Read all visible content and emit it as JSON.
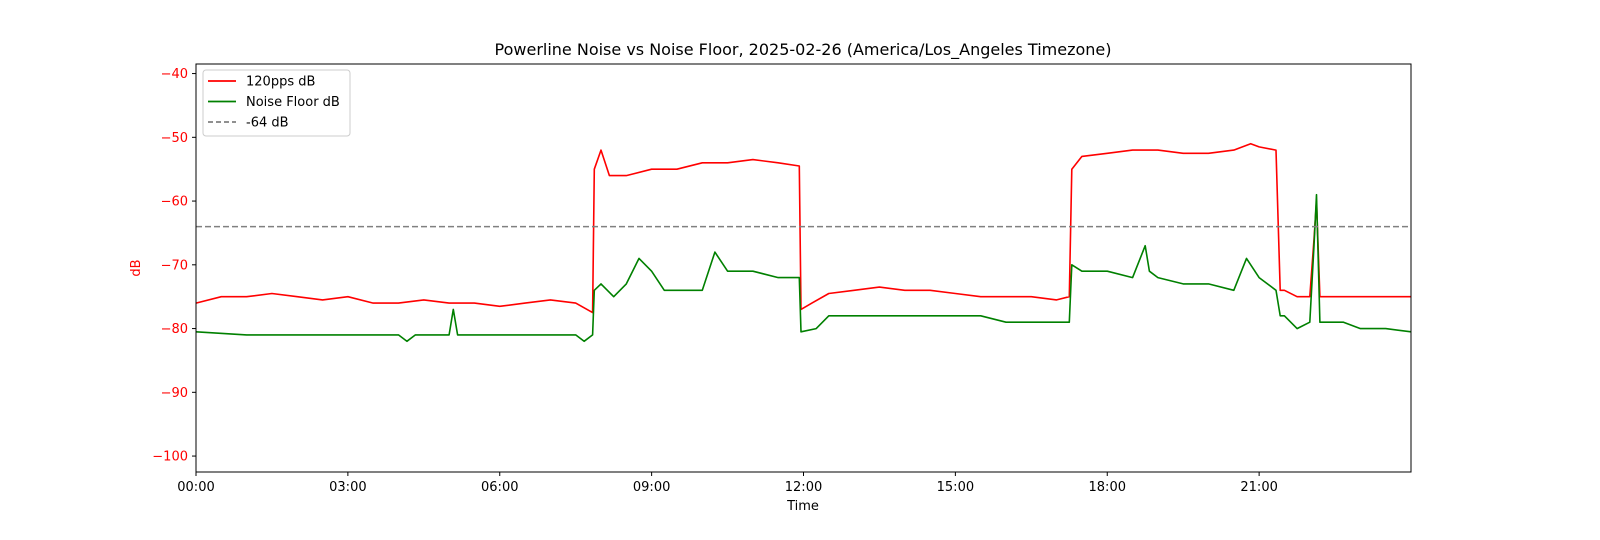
{
  "chart_data": {
    "type": "line",
    "title": "Powerline Noise vs Noise Floor, 2025-02-26 (America/Los_Angeles Timezone)",
    "xlabel": "Time",
    "ylabel": "dB",
    "ylabel_color": "#ff0000",
    "xlim": [
      "00:00",
      "24:00"
    ],
    "ylim": [
      -102.5,
      -38.5
    ],
    "x_ticks": [
      "00:00",
      "03:00",
      "06:00",
      "09:00",
      "12:00",
      "15:00",
      "18:00",
      "21:00"
    ],
    "y_ticks": [
      -40,
      -50,
      -60,
      -70,
      -80,
      -90,
      -100
    ],
    "grid": false,
    "legend_position": "upper left",
    "series": [
      {
        "name": "120pps dB",
        "color": "#ff0000",
        "x": [
          "00:00",
          "00:30",
          "01:00",
          "01:30",
          "02:00",
          "02:30",
          "03:00",
          "03:30",
          "04:00",
          "04:30",
          "05:00",
          "05:30",
          "06:00",
          "06:30",
          "07:00",
          "07:30",
          "07:50",
          "07:52",
          "08:00",
          "08:10",
          "08:30",
          "09:00",
          "09:30",
          "10:00",
          "10:30",
          "11:00",
          "11:30",
          "11:55",
          "11:57",
          "12:10",
          "12:30",
          "13:00",
          "13:30",
          "14:00",
          "14:30",
          "15:00",
          "15:30",
          "16:00",
          "16:30",
          "17:00",
          "17:15",
          "17:18",
          "17:30",
          "18:00",
          "18:30",
          "19:00",
          "19:30",
          "20:00",
          "20:30",
          "20:50",
          "21:00",
          "21:20",
          "21:25",
          "21:30",
          "21:45",
          "22:00",
          "22:05",
          "22:08",
          "22:12",
          "22:20",
          "22:40",
          "23:00",
          "23:30",
          "24:00"
        ],
        "y": [
          -76,
          -75,
          -75,
          -74.5,
          -75,
          -75.5,
          -75,
          -76,
          -76,
          -75.5,
          -76,
          -76,
          -76.5,
          -76,
          -75.5,
          -76,
          -77.5,
          -55,
          -52,
          -56,
          -56,
          -55,
          -55,
          -54,
          -54,
          -53.5,
          -54,
          -54.5,
          -77,
          -76,
          -74.5,
          -74,
          -73.5,
          -74,
          -74,
          -74.5,
          -75,
          -75,
          -75,
          -75.5,
          -75,
          -55,
          -53,
          -52.5,
          -52,
          -52,
          -52.5,
          -52.5,
          -52,
          -51,
          -51.5,
          -52,
          -74,
          -74,
          -75,
          -75,
          -66,
          -60,
          -75,
          -75,
          -75,
          -75,
          -75,
          -75
        ]
      },
      {
        "name": "Noise Floor dB",
        "color": "#008000",
        "x": [
          "00:00",
          "01:00",
          "02:00",
          "03:00",
          "04:00",
          "04:10",
          "04:20",
          "05:00",
          "05:05",
          "05:10",
          "06:00",
          "07:00",
          "07:30",
          "07:40",
          "07:50",
          "07:52",
          "08:00",
          "08:15",
          "08:30",
          "08:45",
          "09:00",
          "09:15",
          "09:30",
          "10:00",
          "10:15",
          "10:30",
          "11:00",
          "11:30",
          "11:55",
          "11:57",
          "12:15",
          "12:30",
          "13:00",
          "13:30",
          "14:00",
          "14:30",
          "15:00",
          "15:30",
          "16:00",
          "16:30",
          "17:00",
          "17:15",
          "17:18",
          "17:30",
          "18:00",
          "18:30",
          "18:45",
          "18:50",
          "19:00",
          "19:30",
          "20:00",
          "20:30",
          "20:45",
          "21:00",
          "21:20",
          "21:25",
          "21:30",
          "21:45",
          "22:00",
          "22:05",
          "22:08",
          "22:12",
          "22:20",
          "22:40",
          "23:00",
          "23:30",
          "24:00"
        ],
        "y": [
          -80.5,
          -81,
          -81,
          -81,
          -81,
          -82,
          -81,
          -81,
          -77,
          -81,
          -81,
          -81,
          -81,
          -82,
          -81,
          -74,
          -73,
          -75,
          -73,
          -69,
          -71,
          -74,
          -74,
          -74,
          -68,
          -71,
          -71,
          -72,
          -72,
          -80.5,
          -80,
          -78,
          -78,
          -78,
          -78,
          -78,
          -78,
          -78,
          -79,
          -79,
          -79,
          -79,
          -70,
          -71,
          -71,
          -72,
          -67,
          -71,
          -72,
          -73,
          -73,
          -74,
          -69,
          -72,
          -74,
          -78,
          -78,
          -80,
          -79,
          -67,
          -59,
          -79,
          -79,
          -79,
          -80,
          -80,
          -80.5
        ]
      },
      {
        "name": "-64 dB",
        "color": "#808080",
        "dashed": true,
        "x": [
          "00:00",
          "24:00"
        ],
        "y": [
          -64,
          -64
        ]
      }
    ]
  }
}
